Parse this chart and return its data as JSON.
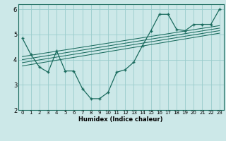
{
  "title": "",
  "xlabel": "Humidex (Indice chaleur)",
  "ylabel": "",
  "bg_color": "#cce8e8",
  "grid_color": "#99cccc",
  "line_color": "#1a6b5e",
  "xlim": [
    -0.5,
    23.5
  ],
  "ylim": [
    2,
    6.2
  ],
  "yticks": [
    2,
    3,
    4,
    5,
    6
  ],
  "xticks": [
    0,
    1,
    2,
    3,
    4,
    5,
    6,
    7,
    8,
    9,
    10,
    11,
    12,
    13,
    14,
    15,
    16,
    17,
    18,
    19,
    20,
    21,
    22,
    23
  ],
  "curve1_x": [
    0,
    1,
    2,
    3,
    4,
    5,
    6,
    7,
    8,
    9,
    10,
    11,
    12,
    13,
    14,
    15,
    16,
    17,
    18,
    19,
    20,
    21,
    22,
    23
  ],
  "curve1_y": [
    4.85,
    4.2,
    3.7,
    3.5,
    4.35,
    3.55,
    3.55,
    2.85,
    2.45,
    2.45,
    2.7,
    3.5,
    3.6,
    3.9,
    4.55,
    5.15,
    5.8,
    5.8,
    5.2,
    5.15,
    5.4,
    5.4,
    5.4,
    6.0
  ],
  "line1_x": [
    0,
    23
  ],
  "line1_y": [
    3.75,
    5.05
  ],
  "line2_x": [
    0,
    23
  ],
  "line2_y": [
    3.88,
    5.15
  ],
  "line3_x": [
    0,
    23
  ],
  "line3_y": [
    4.0,
    5.25
  ],
  "line4_x": [
    0,
    23
  ],
  "line4_y": [
    4.12,
    5.35
  ]
}
